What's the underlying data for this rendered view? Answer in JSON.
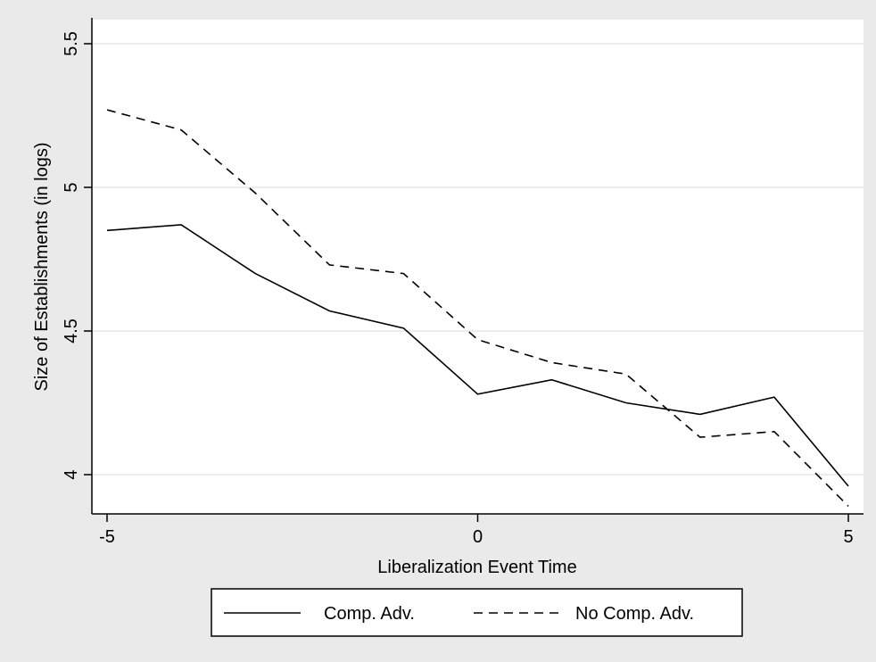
{
  "chart_data": {
    "type": "line",
    "title": "",
    "xlabel": "Liberalization Event Time",
    "ylabel": "Size of Establishments (in logs)",
    "xlim": [
      -5,
      5
    ],
    "ylim": [
      4,
      5.5
    ],
    "x_ticks": [
      -5,
      0,
      5
    ],
    "x_tick_labels": [
      "-5",
      "0",
      "5"
    ],
    "y_ticks": [
      4,
      4.5,
      5,
      5.5
    ],
    "y_tick_labels": [
      "4",
      "4.5",
      "5",
      "5.5"
    ],
    "grid": "horizontal",
    "legend_position": "bottom",
    "x": [
      -5,
      -4,
      -3,
      -2,
      -1,
      0,
      1,
      2,
      3,
      4,
      5
    ],
    "series": [
      {
        "name": "Comp. Adv.",
        "style": "solid",
        "color": "#000000",
        "values": [
          4.85,
          4.87,
          4.7,
          4.57,
          4.51,
          4.28,
          4.33,
          4.25,
          4.21,
          4.27,
          3.96
        ]
      },
      {
        "name": "No Comp. Adv.",
        "style": "dashed",
        "color": "#000000",
        "values": [
          5.27,
          5.2,
          4.98,
          4.73,
          4.7,
          4.47,
          4.39,
          4.35,
          4.13,
          4.15,
          3.89
        ]
      }
    ],
    "outer_background": "#eaeaea",
    "plot_background": "#ffffff",
    "gridline_color": "#e6e6e6"
  }
}
